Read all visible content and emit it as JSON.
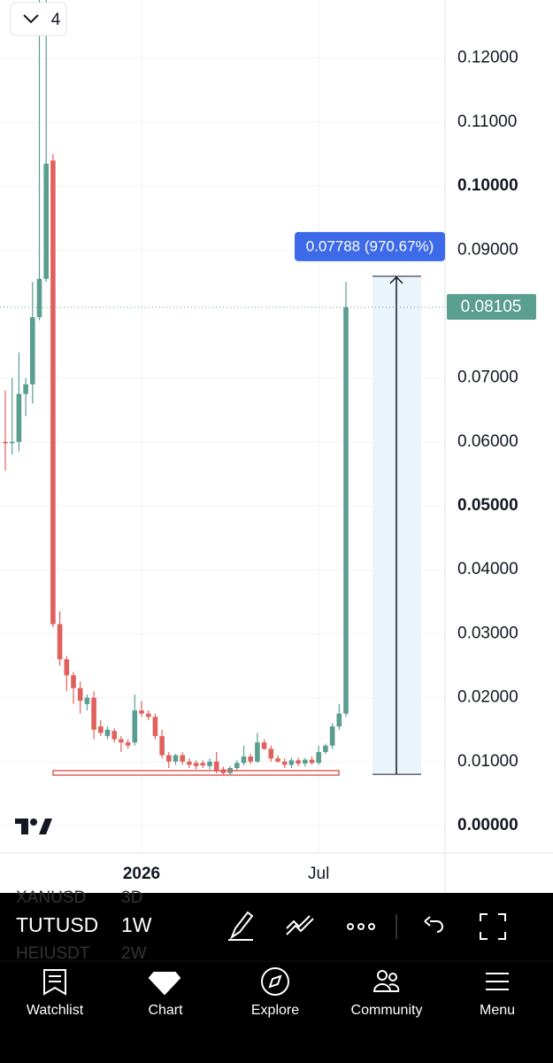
{
  "chart_data": {
    "type": "candlestick",
    "categories": [
      null,
      null,
      null,
      null,
      null,
      null,
      null,
      null,
      null,
      null,
      null,
      null,
      null,
      null,
      null,
      null,
      null,
      null,
      null,
      null,
      "2026",
      null,
      null,
      null,
      null,
      null,
      null,
      null,
      null,
      null,
      null,
      null,
      null,
      null,
      null,
      null,
      null,
      null,
      null,
      null,
      null,
      null,
      null,
      null,
      null,
      null,
      "Jul",
      null,
      null,
      null,
      null
    ],
    "open": [
      0.06,
      0.0598,
      0.06,
      0.0675,
      0.069,
      0.0795,
      0.0855,
      0.104,
      0.0315,
      0.026,
      0.0235,
      0.0215,
      0.019,
      0.02,
      0.0155,
      0.014,
      0.0148,
      0.0135,
      0.013,
      0.013,
      0.018,
      0.0175,
      0.017,
      0.014,
      0.011,
      0.01,
      0.011,
      0.01,
      0.0098,
      0.0098,
      0.0093,
      0.01,
      0.0088,
      0.0082,
      0.009,
      0.0098,
      0.0108,
      0.01,
      0.013,
      0.012,
      0.0105,
      0.01,
      0.0095,
      0.0102,
      0.0097,
      0.0103,
      0.0098,
      0.0115,
      0.0125,
      0.0155,
      0.0175
    ],
    "high": [
      0.068,
      0.07,
      0.074,
      0.07,
      0.085,
      0.13,
      0.13,
      0.105,
      0.0335,
      0.0265,
      0.024,
      0.0225,
      0.0205,
      0.021,
      0.0165,
      0.0155,
      0.0152,
      0.014,
      0.0135,
      0.0205,
      0.0195,
      0.018,
      0.0175,
      0.015,
      0.0115,
      0.0112,
      0.0115,
      0.0105,
      0.0102,
      0.0102,
      0.0105,
      0.0115,
      0.0092,
      0.0093,
      0.0102,
      0.0125,
      0.0112,
      0.0145,
      0.0135,
      0.0125,
      0.011,
      0.0105,
      0.0106,
      0.0106,
      0.0106,
      0.0108,
      0.0125,
      0.0128,
      0.016,
      0.019,
      0.085
    ],
    "low": [
      0.0555,
      0.058,
      0.0585,
      0.064,
      0.066,
      0.079,
      0.085,
      0.031,
      0.025,
      0.021,
      0.019,
      0.0175,
      0.018,
      0.0135,
      0.014,
      0.0135,
      0.013,
      0.0115,
      0.012,
      0.0125,
      0.017,
      0.0165,
      0.0135,
      0.0105,
      0.009,
      0.0095,
      0.0095,
      0.009,
      0.0088,
      0.009,
      0.0088,
      0.0082,
      0.008,
      0.008,
      0.0086,
      0.0094,
      0.0096,
      0.0098,
      0.0118,
      0.01,
      0.0098,
      0.009,
      0.009,
      0.0093,
      0.0092,
      0.0095,
      0.0095,
      0.0112,
      0.012,
      0.015,
      0.017
    ],
    "close": [
      0.0598,
      0.06,
      0.0675,
      0.069,
      0.0795,
      0.0855,
      0.1035,
      0.0315,
      0.026,
      0.0235,
      0.0215,
      0.0195,
      0.02,
      0.015,
      0.0145,
      0.015,
      0.0135,
      0.013,
      0.0125,
      0.018,
      0.0175,
      0.017,
      0.014,
      0.011,
      0.01,
      0.011,
      0.01,
      0.0095,
      0.0093,
      0.0094,
      0.01,
      0.0085,
      0.0082,
      0.009,
      0.0098,
      0.0108,
      0.01,
      0.013,
      0.012,
      0.0105,
      0.01,
      0.0095,
      0.0102,
      0.0097,
      0.0103,
      0.0098,
      0.0115,
      0.0125,
      0.0155,
      0.0175,
      0.08105
    ],
    "up_color": "#5a9e90",
    "down_color": "#e0605c",
    "ylim": [
      -0.0043,
      0.1291
    ],
    "yticks": [
      {
        "value": 0,
        "label": "0.00000"
      },
      {
        "value": 0.01,
        "label": "0.01000"
      },
      {
        "value": 0.02,
        "label": "0.02000"
      },
      {
        "value": 0.03,
        "label": "0.03000"
      },
      {
        "value": 0.04,
        "label": "0.04000"
      },
      {
        "value": 0.05,
        "label": "0.05000"
      },
      {
        "value": 0.06,
        "label": "0.06000"
      },
      {
        "value": 0.07,
        "label": "0.07000"
      },
      {
        "value": 0.09,
        "label": "0.09000"
      },
      {
        "value": 0.1,
        "label": "0.10000"
      },
      {
        "value": 0.11,
        "label": "0.11000"
      },
      {
        "value": 0.12,
        "label": "0.12000"
      }
    ],
    "grid": true,
    "last_price": 0.08105,
    "measure": {
      "change_label": "0.07788 (970.67%)",
      "low": 0.00802,
      "high": 0.0859
    }
  },
  "interval_badge": "4",
  "toolbar": {
    "symbol": "TUTUSD",
    "interval": "1W",
    "prev_symbol": "XANUSD",
    "prev_interval": "3D",
    "next_symbol": "HEIUSDT",
    "next_interval": "2W"
  },
  "nav": [
    "Watchlist",
    "Chart",
    "Explore",
    "Community",
    "Menu"
  ]
}
